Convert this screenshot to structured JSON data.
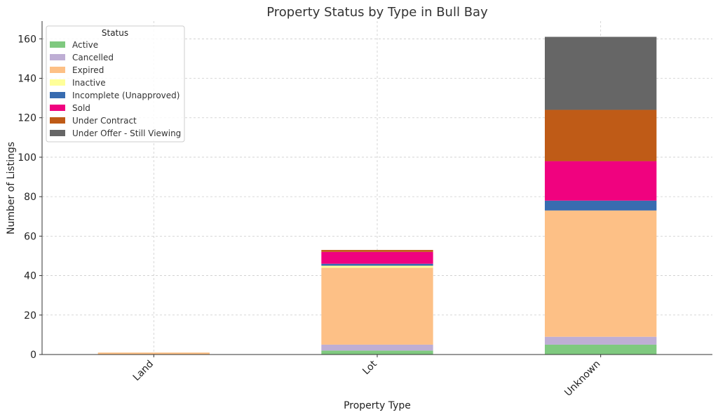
{
  "chart_data": {
    "type": "bar",
    "stacked": true,
    "title": "Property Status by Type in Bull Bay",
    "xlabel": "Property Type",
    "ylabel": "Number of Listings",
    "categories": [
      "Land",
      "Lot",
      "Unknown"
    ],
    "ylim": [
      0,
      169
    ],
    "yticks": [
      0,
      20,
      40,
      60,
      80,
      100,
      120,
      140,
      160
    ],
    "grid": true,
    "legend_title": "Status",
    "legend_position": "top-left",
    "series": [
      {
        "name": "Active",
        "color": "#7fc97f",
        "values": [
          0,
          2,
          5
        ]
      },
      {
        "name": "Cancelled",
        "color": "#beaed4",
        "values": [
          0,
          3,
          4
        ]
      },
      {
        "name": "Expired",
        "color": "#fdc086",
        "values": [
          1,
          39,
          64
        ]
      },
      {
        "name": "Inactive",
        "color": "#ffff99",
        "values": [
          0,
          1,
          0
        ]
      },
      {
        "name": "Incomplete (Unapproved)",
        "color": "#386cb0",
        "values": [
          0,
          1,
          5
        ]
      },
      {
        "name": "Sold",
        "color": "#f0027f",
        "values": [
          0,
          6,
          20
        ]
      },
      {
        "name": "Under Contract",
        "color": "#bf5b17",
        "values": [
          0,
          1,
          26
        ]
      },
      {
        "name": "Under Offer - Still Viewing",
        "color": "#666666",
        "values": [
          0,
          0,
          37
        ]
      }
    ]
  }
}
